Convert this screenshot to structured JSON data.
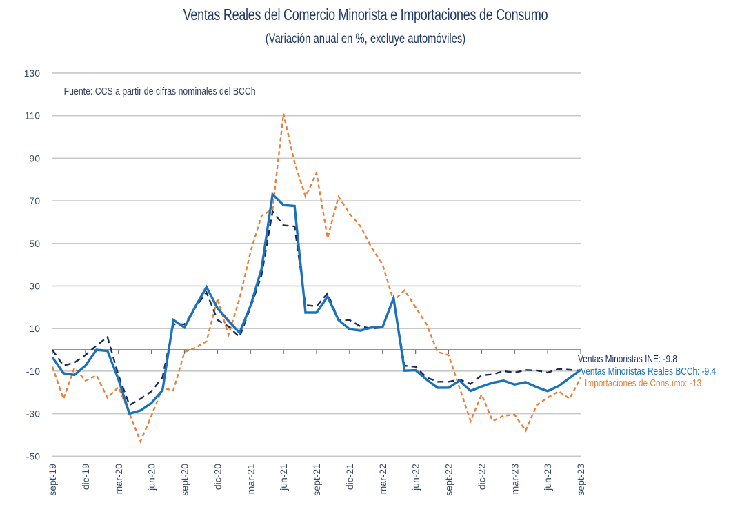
{
  "chart_data": {
    "type": "line",
    "title": "Ventas Reales del Comercio Minorista e Importaciones de Consumo",
    "subtitle": "(Variación anual en %, excluye automóviles)",
    "annotation": "Fuente: CCS a partir de cifras nominales del BCCh",
    "xlabel": "",
    "ylabel": "",
    "ylim": [
      -50,
      130
    ],
    "yticks": [
      130,
      110,
      90,
      70,
      50,
      30,
      10,
      -10,
      -30,
      -50
    ],
    "grid": true,
    "legend": "end-of-line labels (right)",
    "x": [
      "sept-19",
      "oct-19",
      "nov-19",
      "dic-19",
      "ene-20",
      "feb-20",
      "mar-20",
      "abr-20",
      "may-20",
      "jun-20",
      "jul-20",
      "ago-20",
      "sept-20",
      "oct-20",
      "nov-20",
      "dic-20",
      "ene-21",
      "feb-21",
      "mar-21",
      "abr-21",
      "may-21",
      "jun-21",
      "jul-21",
      "ago-21",
      "sept-21",
      "oct-21",
      "nov-21",
      "dic-21",
      "ene-22",
      "feb-22",
      "mar-22",
      "abr-22",
      "may-22",
      "jun-22",
      "jul-22",
      "ago-22",
      "sept-22",
      "oct-22",
      "nov-22",
      "dic-22",
      "ene-23",
      "feb-23",
      "mar-23",
      "abr-23",
      "may-23",
      "jun-23",
      "jul-23",
      "ago-23",
      "sept-23"
    ],
    "xticks": [
      "sept-19",
      "dic-19",
      "mar-20",
      "jun-20",
      "sept-20",
      "dic-20",
      "mar-21",
      "jun-21",
      "sept-21",
      "dic-21",
      "mar-22",
      "jun-22",
      "sept-22",
      "dic-22",
      "mar-23",
      "jun-23",
      "sept-23"
    ],
    "series": [
      {
        "name": "Ventas Minoristas INE",
        "end_label": "Ventas Minoristas INE: -9.8",
        "color": "#1b2a5c",
        "style": "dashed",
        "values": [
          0,
          -7.5,
          -6,
          -2.5,
          2,
          6,
          -12,
          -26,
          -23,
          -19.5,
          -13,
          12,
          12,
          20,
          27,
          14,
          11,
          6,
          20,
          35,
          65,
          58.5,
          58,
          21,
          20.5,
          26.5,
          14,
          14,
          11,
          10,
          10.5,
          24,
          -7.5,
          -8,
          -13,
          -15,
          -15,
          -14,
          -16,
          -12,
          -11.5,
          -10,
          -10.7,
          -9.5,
          -9.7,
          -10.7,
          -9,
          -9.4,
          -9.8
        ]
      },
      {
        "name": "Ventas Minoristas Reales BCCh",
        "end_label": "Ventas Minoristas Reales BCCh: -9.4",
        "color": "#1a72bb",
        "style": "solid",
        "values": [
          -3.5,
          -11,
          -11.8,
          -7.5,
          0,
          -0.5,
          -14,
          -30,
          -28.5,
          -25,
          -19,
          14,
          10.5,
          20.5,
          29.5,
          19.5,
          13.6,
          8,
          20.7,
          38,
          73,
          68,
          67.6,
          17.5,
          17.5,
          25,
          14,
          9.7,
          9,
          10.5,
          10.7,
          24.3,
          -9.8,
          -9.6,
          -14,
          -17.8,
          -17.8,
          -14.5,
          -19.3,
          -17.2,
          -15.5,
          -14.5,
          -16.3,
          -15.2,
          -17.5,
          -19.4,
          -17,
          -13.2,
          -9.4
        ]
      },
      {
        "name": "Importaciones de Consumo",
        "end_label": "Importaciones de Consumo: -13",
        "color": "#e8803a",
        "style": "dashed",
        "values": [
          -8,
          -23,
          -8.5,
          -14.5,
          -12,
          -22.5,
          -17.5,
          -30,
          -43,
          -31,
          -18,
          -19,
          -1,
          1,
          4,
          24,
          7,
          24,
          46,
          63,
          66,
          111,
          88,
          72,
          83,
          52.5,
          72,
          64,
          58,
          48,
          40,
          23,
          28,
          20,
          12,
          -1,
          -2.5,
          -18,
          -33.5,
          -21,
          -33.5,
          -31,
          -30.5,
          -38,
          -26,
          -22.5,
          -19.5,
          -23,
          -13
        ]
      }
    ]
  }
}
